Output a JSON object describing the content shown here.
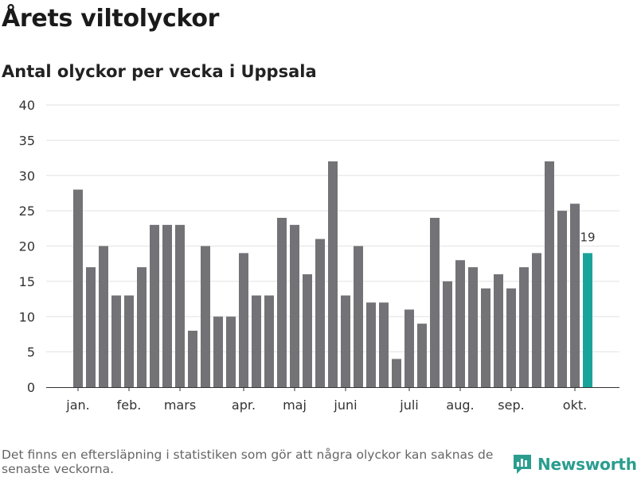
{
  "header": {
    "title": "Årets viltolyckor",
    "subtitle": "Antal olyckor per vecka i Uppsala"
  },
  "footer": {
    "note": "Det finns en eftersläpning i statistiken som gör att några olyckor kan saknas de senaste veckorna.",
    "brand": "Newsworthy",
    "brand_icon": "newsworthy-logo-icon"
  },
  "colors": {
    "bar": "#737276",
    "highlight": "#1aa39a",
    "grid": "#e2e2e2",
    "axis": "#333333"
  },
  "chart_data": {
    "type": "bar",
    "title": "Antal olyckor per vecka i Uppsala",
    "xlabel": "",
    "ylabel": "",
    "ylim": [
      0,
      40
    ],
    "yticks": [
      0,
      5,
      10,
      15,
      20,
      25,
      30,
      35,
      40
    ],
    "grid": true,
    "values": [
      28,
      17,
      20,
      13,
      13,
      17,
      23,
      23,
      23,
      8,
      20,
      10,
      10,
      19,
      13,
      13,
      24,
      23,
      16,
      21,
      32,
      13,
      20,
      12,
      12,
      4,
      11,
      9,
      24,
      15,
      18,
      17,
      14,
      16,
      14,
      17,
      19,
      32,
      25,
      26,
      19
    ],
    "highlight_index": 40,
    "highlight_label": "19",
    "month_labels": [
      {
        "label": "jan.",
        "index": 0
      },
      {
        "label": "feb.",
        "index": 4
      },
      {
        "label": "mars",
        "index": 8
      },
      {
        "label": "apr.",
        "index": 13
      },
      {
        "label": "maj",
        "index": 17
      },
      {
        "label": "juni",
        "index": 21
      },
      {
        "label": "juli",
        "index": 26
      },
      {
        "label": "aug.",
        "index": 30
      },
      {
        "label": "sep.",
        "index": 34
      },
      {
        "label": "okt.",
        "index": 39
      }
    ]
  }
}
